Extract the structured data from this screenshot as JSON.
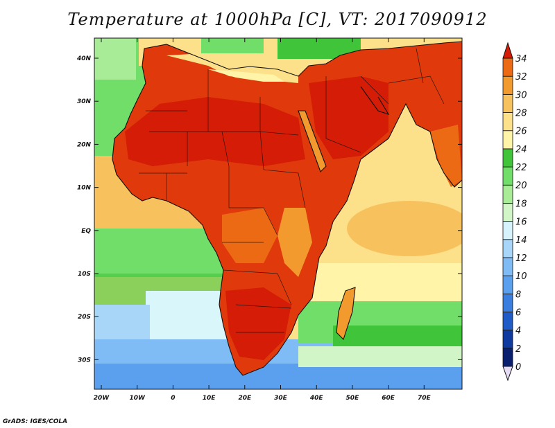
{
  "title": "Temperature at 1000hPa [C], VT: 2017090912",
  "credit": "GrADS: IGES/COLA",
  "lat_labels": [
    "40N",
    "30N",
    "20N",
    "10N",
    "EQ",
    "10S",
    "20S",
    "30S"
  ],
  "lon_labels": [
    "20W",
    "10W",
    "0",
    "10E",
    "20E",
    "30E",
    "40E",
    "50E",
    "60E",
    "70E"
  ],
  "colorbar": {
    "levels": [
      "0",
      "2",
      "4",
      "6",
      "8",
      "10",
      "12",
      "14",
      "16",
      "18",
      "20",
      "22",
      "24",
      "26",
      "28",
      "30",
      "32",
      "34"
    ],
    "colors": [
      "#0a1f6e",
      "#0f3aa0",
      "#1f5cc8",
      "#3a7ee0",
      "#5aa0ef",
      "#7fbcf5",
      "#a8d6f8",
      "#d6f2fb",
      "#d2f5c8",
      "#a8ec98",
      "#72de6a",
      "#3fc43a",
      "#fff4a8",
      "#fde08a",
      "#f7c15e",
      "#f39a2e",
      "#ec6a14",
      "#e03a0c",
      "#d41c06"
    ]
  },
  "map": {
    "colors": {
      "sea_cold": "#4a90e2",
      "sea_cool": "#9fd0f5",
      "sea_pale": "#d9f6fb",
      "sea_green": "#7fe070",
      "sea_green_dark": "#3fc43a",
      "warm_sea": "#f7c15e",
      "pale_sea": "#fff4a8",
      "hot": "#e03a0c",
      "hotter": "#d41c06",
      "orange": "#f39a2e"
    }
  }
}
